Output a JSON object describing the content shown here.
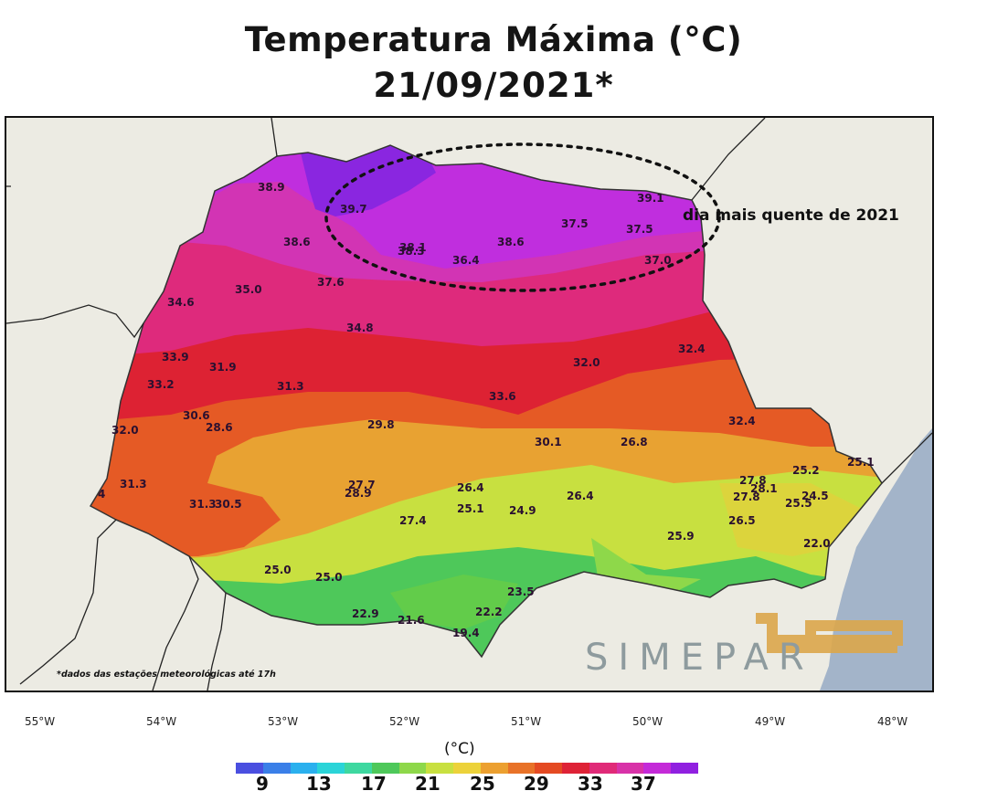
{
  "title": {
    "line1": "Temperatura Máxima (°C)",
    "line2": "21/09/2021*"
  },
  "annotation": "dia mais quente de 2021",
  "footnote": "*dados das estações meteorológicas até 17h",
  "logo": "SIMEPAR",
  "colorbar": {
    "unit": "(°C)",
    "ticks": [
      "9",
      "13",
      "17",
      "21",
      "25",
      "29",
      "33",
      "37"
    ],
    "colors": [
      "#4a4fe0",
      "#3a7fe8",
      "#2ab0ee",
      "#2ad4d8",
      "#3ed8a0",
      "#4ec85a",
      "#8ed84a",
      "#c8e040",
      "#ecd23a",
      "#eca030",
      "#e87228",
      "#e44a22",
      "#de2236",
      "#e02a78",
      "#d832a8",
      "#c42ad8",
      "#9020e0"
    ]
  },
  "longitudes": [
    "55°W",
    "54°W",
    "53°W",
    "52°W",
    "51°W",
    "50°W",
    "49°W",
    "48°W"
  ],
  "stations": [
    {
      "v": "38.9"
    },
    {
      "v": "39.7"
    },
    {
      "v": "38.6"
    },
    {
      "v": "38.1"
    },
    {
      "v": "38.3"
    },
    {
      "v": "36.4"
    },
    {
      "v": "38.6"
    },
    {
      "v": "37.5"
    },
    {
      "v": "37.5"
    },
    {
      "v": "39.1"
    },
    {
      "v": "37.0"
    },
    {
      "v": "37.6"
    },
    {
      "v": "35.0"
    },
    {
      "v": "34.6"
    },
    {
      "v": "34.8"
    },
    {
      "v": "33.9"
    },
    {
      "v": "31.9"
    },
    {
      "v": "33.2"
    },
    {
      "v": "31.3"
    },
    {
      "v": "32.4"
    },
    {
      "v": "32.0"
    },
    {
      "v": "33.6"
    },
    {
      "v": "30.6"
    },
    {
      "v": "28.6"
    },
    {
      "v": "32.0"
    },
    {
      "v": "29.8"
    },
    {
      "v": "30.1"
    },
    {
      "v": "26.8"
    },
    {
      "v": "32.4"
    },
    {
      "v": "31.3"
    },
    {
      "v": "4"
    },
    {
      "v": "27.7"
    },
    {
      "v": "28.9"
    },
    {
      "v": "26.4"
    },
    {
      "v": "31.3"
    },
    {
      "v": "30.5"
    },
    {
      "v": "25.1"
    },
    {
      "v": "24.9"
    },
    {
      "v": "26.4"
    },
    {
      "v": "27.4"
    },
    {
      "v": "25.2"
    },
    {
      "v": "25.1"
    },
    {
      "v": "27.8"
    },
    {
      "v": "28.1"
    },
    {
      "v": "27.8"
    },
    {
      "v": "24.5"
    },
    {
      "v": "25.5"
    },
    {
      "v": "26.5"
    },
    {
      "v": "25.9"
    },
    {
      "v": "22.0"
    },
    {
      "v": "25.0"
    },
    {
      "v": "25.0"
    },
    {
      "v": "23.5"
    },
    {
      "v": "22.9"
    },
    {
      "v": "21.6"
    },
    {
      "v": "22.2"
    },
    {
      "v": "19.4"
    }
  ],
  "colors": {
    "background": "#ecebe3",
    "ocean": "#a3b4c9",
    "border": "#111111"
  }
}
